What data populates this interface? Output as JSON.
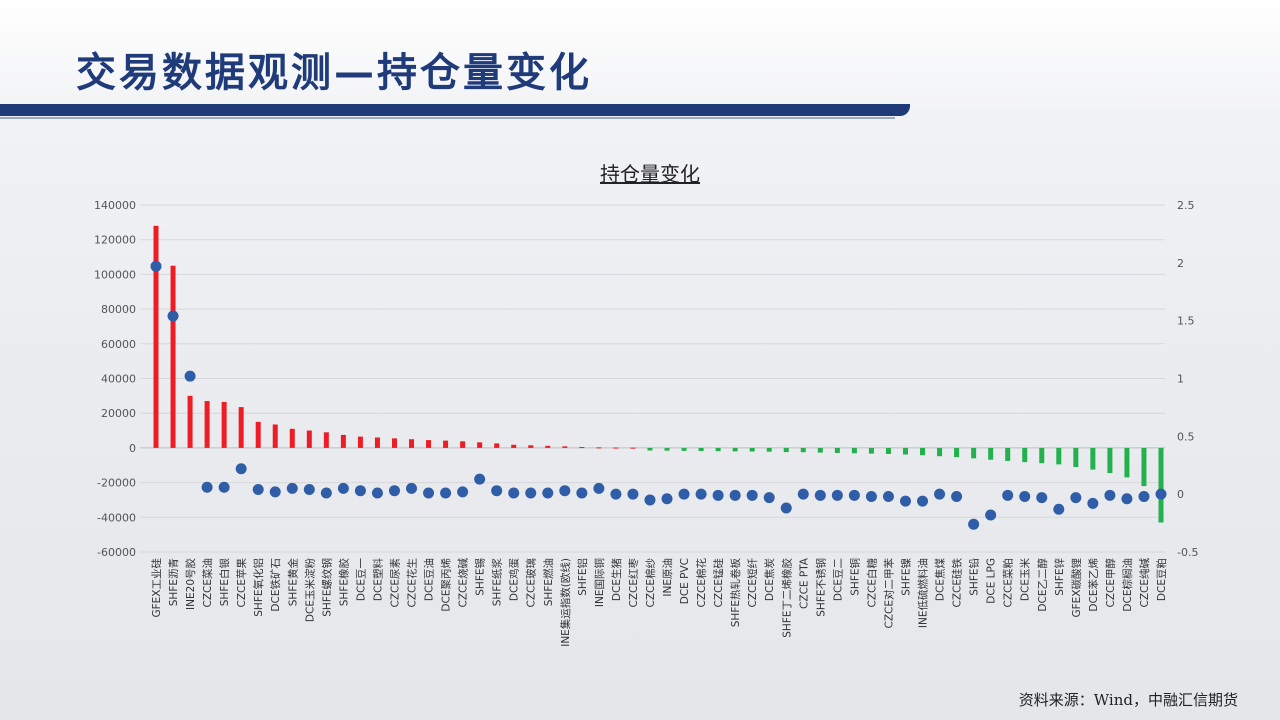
{
  "page": {
    "title": "交易数据观测—持仓量变化",
    "source": "资料来源：Wind，中融汇信期货"
  },
  "colors": {
    "title": "#1f3b7a",
    "stripe": "#1e3a78",
    "positive_bar": "#ee1c25",
    "negative_bar": "#22b14c",
    "dot": "#2f5da8"
  },
  "chart_data": {
    "type": "bar",
    "title": "持仓量变化",
    "categories": [
      "GFEX工业硅",
      "SHFE沥青",
      "INE20号胶",
      "CZCE菜油",
      "SHFE白银",
      "CZCE苹果",
      "SHFE氧化铝",
      "DCE铁矿石",
      "SHFE黄金",
      "DCE玉米淀粉",
      "SHFE螺纹钢",
      "SHFE橡胶",
      "DCE豆一",
      "DCE塑料",
      "CZCE尿素",
      "CZCE花生",
      "DCE豆油",
      "DCE聚丙烯",
      "CZCE烧碱",
      "SHFE锡",
      "SHFE纸浆",
      "DCE鸡蛋",
      "CZCE玻璃",
      "SHFE燃油",
      "INE集运指数(欧线)",
      "SHFE铝",
      "INE国际铜",
      "DCE生猪",
      "CZCE红枣",
      "CZCE棉纱",
      "INE原油",
      "DCE PVC",
      "CZCE棉花",
      "CZCE锰硅",
      "SHFE热轧卷板",
      "CZCE短纤",
      "DCE焦炭",
      "SHFE丁二烯橡胶",
      "CZCE PTA",
      "SHFE不锈钢",
      "DCE豆二",
      "SHFE铜",
      "CZCE白糖",
      "CZCE对二甲苯",
      "SHFE镍",
      "INE低硫燃料油",
      "DCE焦煤",
      "CZCE硅铁",
      "SHFE铅",
      "DCE LPG",
      "CZCE菜粕",
      "DCE玉米",
      "DCE乙二醇",
      "SHFE锌",
      "GFEX碳酸锂",
      "DCE苯乙烯",
      "CZCE甲醇",
      "DCE棕榈油",
      "CZCE纯碱",
      "DCE豆粕"
    ],
    "series": [
      {
        "axis": "left",
        "values": [
          128000,
          105000,
          30000,
          27000,
          26500,
          23500,
          15000,
          13500,
          11000,
          10000,
          9000,
          7500,
          6500,
          6000,
          5500,
          5000,
          4500,
          4200,
          3800,
          3200,
          2600,
          1800,
          1500,
          1200,
          900,
          500,
          300,
          200,
          150,
          -1500,
          -1600,
          -1700,
          -1800,
          -1900,
          -2000,
          -2100,
          -2200,
          -2400,
          -2500,
          -2700,
          -2900,
          -3100,
          -3300,
          -3500,
          -3800,
          -4200,
          -4800,
          -5300,
          -6000,
          -6800,
          -7500,
          -8200,
          -8800,
          -9500,
          -11000,
          -12500,
          -14500,
          -17000,
          -22000,
          -43000
        ]
      },
      {
        "axis": "right",
        "values": [
          1.97,
          1.54,
          1.02,
          0.06,
          0.06,
          0.22,
          0.04,
          0.02,
          0.05,
          0.04,
          0.01,
          0.05,
          0.03,
          0.01,
          0.03,
          0.05,
          0.01,
          0.01,
          0.02,
          0.13,
          0.03,
          0.01,
          0.01,
          0.01,
          0.03,
          0.01,
          0.05,
          0.0,
          0.0,
          -0.05,
          -0.04,
          0.0,
          0.0,
          -0.01,
          -0.01,
          -0.01,
          -0.03,
          -0.12,
          0.0,
          -0.01,
          -0.01,
          -0.01,
          -0.02,
          -0.02,
          -0.06,
          -0.06,
          0.0,
          -0.02,
          -0.26,
          -0.18,
          -0.01,
          -0.02,
          -0.03,
          -0.13,
          -0.03,
          -0.08,
          -0.01,
          -0.04,
          -0.02,
          0.0
        ]
      }
    ],
    "ylim_left": [
      -60000,
      140000
    ],
    "yticks_left": [
      "140000",
      "120000",
      "100000",
      "80000",
      "60000",
      "40000",
      "20000",
      "0",
      "-20000",
      "-40000",
      "-60000"
    ],
    "ylim_right": [
      -0.5,
      2.5
    ],
    "yticks_right": [
      "2.5",
      "2",
      "1.5",
      "1",
      "0.5",
      "0",
      "-0.5"
    ],
    "grid": true,
    "legend": "none"
  }
}
